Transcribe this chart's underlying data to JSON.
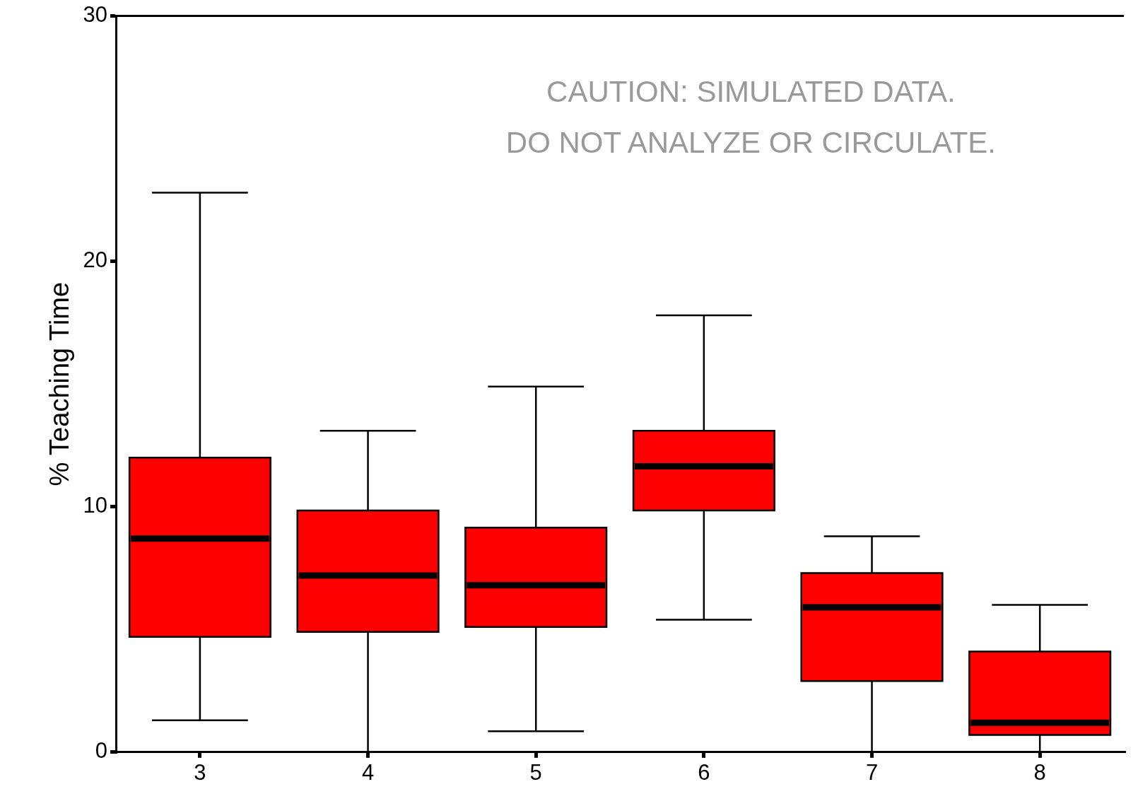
{
  "chart_data": {
    "type": "box",
    "ylabel": "% Teaching Time",
    "categories": [
      "3",
      "4",
      "5",
      "6",
      "7",
      "8"
    ],
    "color": "#ff0000",
    "boxes": [
      {
        "low": 1.3,
        "q1": 4.7,
        "median": 8.7,
        "q3": 12.0,
        "high": 22.8
      },
      {
        "low": 0,
        "q1": 4.9,
        "median": 7.2,
        "q3": 9.85,
        "high": 13.1
      },
      {
        "low": 0.85,
        "q1": 5.1,
        "median": 6.8,
        "q3": 9.15,
        "high": 14.9
      },
      {
        "low": 5.4,
        "q1": 9.85,
        "median": 11.65,
        "q3": 13.1,
        "high": 17.8
      },
      {
        "low": 0,
        "q1": 2.9,
        "median": 5.9,
        "q3": 7.3,
        "high": 8.8
      },
      {
        "low": 0,
        "q1": 0.7,
        "median": 1.2,
        "q3": 4.1,
        "high": 6.0
      }
    ],
    "ylim": [
      0,
      30
    ],
    "yticks": [
      0,
      10,
      20,
      30
    ],
    "grid": false,
    "legend": false,
    "annotations": [
      "CAUTION: SIMULATED DATA.",
      "DO NOT ANALYZE OR CIRCULATE."
    ]
  }
}
